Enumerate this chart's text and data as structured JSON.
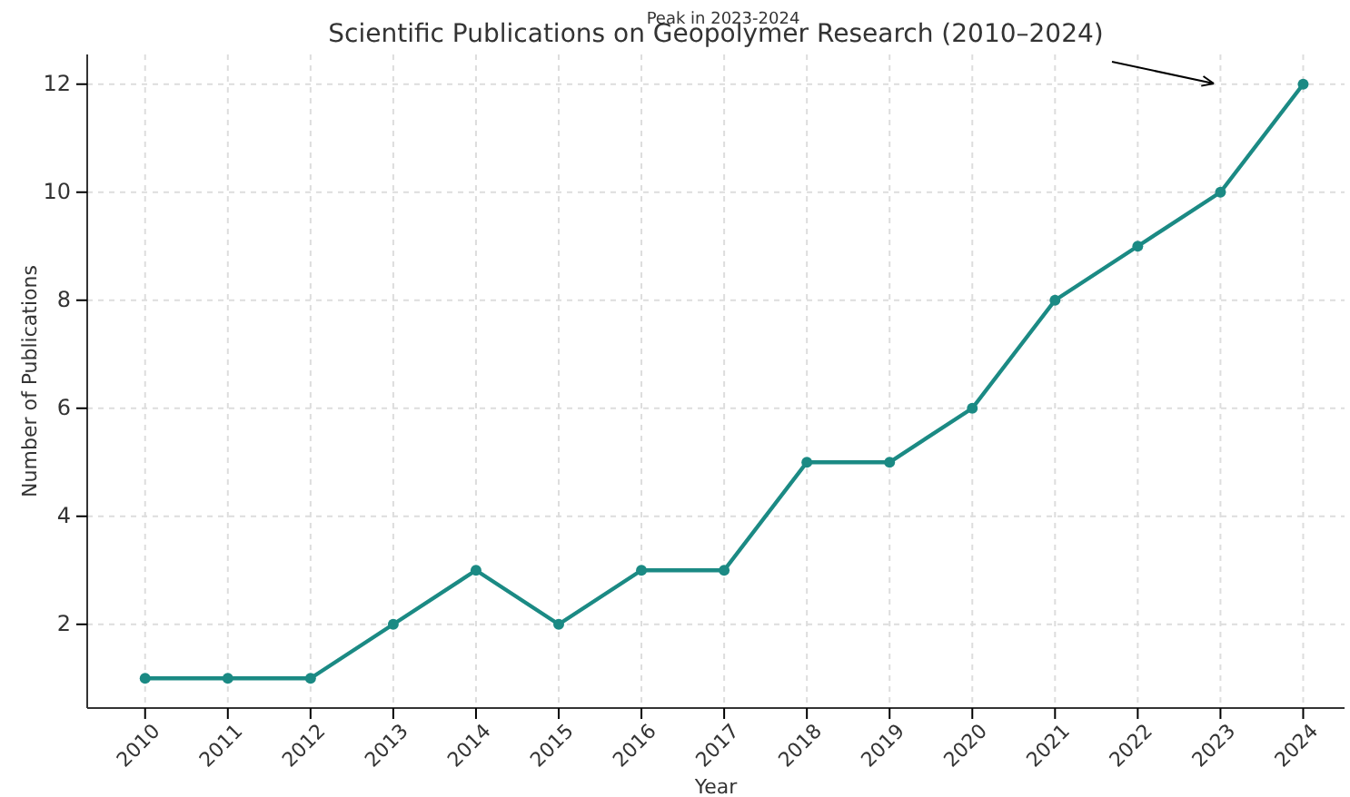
{
  "chart_data": {
    "type": "line",
    "title": "Scientific Publications on Geopolymer Research (2010–2024)",
    "xlabel": "Year",
    "ylabel": "Number of Publications",
    "x": [
      2010,
      2011,
      2012,
      2013,
      2014,
      2015,
      2016,
      2017,
      2018,
      2019,
      2020,
      2021,
      2022,
      2023,
      2024
    ],
    "series": [
      {
        "color": "#1b8a84",
        "values": [
          1,
          1,
          1,
          2,
          3,
          2,
          3,
          3,
          5,
          5,
          6,
          8,
          9,
          10,
          12
        ]
      }
    ],
    "xlim": [
      2009.3,
      2024.5
    ],
    "xticks": [
      2010,
      2011,
      2012,
      2013,
      2014,
      2015,
      2016,
      2017,
      2018,
      2019,
      2020,
      2021,
      2022,
      2023,
      2024
    ],
    "ylim": [
      0.45,
      12.55
    ],
    "yticks": [
      2,
      4,
      6,
      8,
      10,
      12
    ],
    "annotations": [
      "Peak in 2023-2024"
    ],
    "grid": true,
    "marker": "circle",
    "line_style": "solid"
  }
}
